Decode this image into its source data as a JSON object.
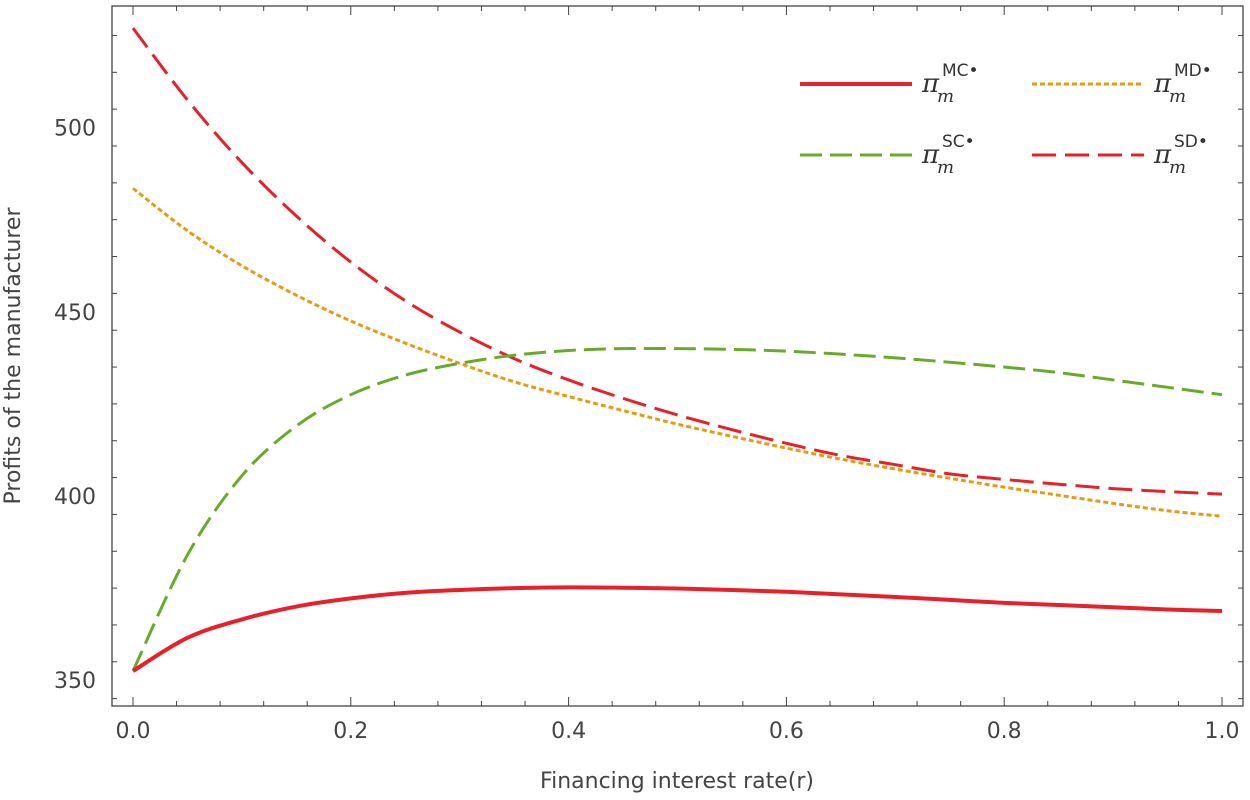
{
  "chart_data": {
    "type": "line",
    "xlabel": "Financing interest rate(r)",
    "ylabel": "Profits of the manufacturer",
    "xlim": [
      0,
      1
    ],
    "ylim": [
      343,
      533
    ],
    "x_ticks": [
      "0.0",
      "0.2",
      "0.4",
      "0.6",
      "0.8",
      "1.0"
    ],
    "y_ticks": [
      "350",
      "400",
      "450",
      "500"
    ],
    "x_tick_values": [
      0,
      0.2,
      0.4,
      0.6,
      0.8,
      1.0
    ],
    "y_tick_values": [
      350,
      400,
      450,
      500
    ],
    "grid": false,
    "legend_position": "top-right",
    "series": [
      {
        "name": "MC",
        "legend": {
          "symbol": "π",
          "sub": "m",
          "sup": "MC•"
        },
        "color": "#e8202a",
        "style": "solid",
        "x": [
          0,
          0.05,
          0.1,
          0.15,
          0.2,
          0.25,
          0.3,
          0.35,
          0.4,
          0.45,
          0.5,
          0.55,
          0.6,
          0.65,
          0.7,
          0.75,
          0.8,
          0.85,
          0.9,
          0.95,
          1.0
        ],
        "y": [
          352.5,
          361.5,
          366.5,
          370.0,
          372.2,
          373.7,
          374.5,
          375.0,
          375.2,
          375.1,
          374.9,
          374.5,
          374.0,
          373.3,
          372.6,
          371.8,
          371.0,
          370.4,
          369.8,
          369.2,
          368.8
        ]
      },
      {
        "name": "MD",
        "legend": {
          "symbol": "π",
          "sub": "m",
          "sup": "MD•"
        },
        "color": "#e99a13",
        "style": "dotted",
        "x": [
          0,
          0.05,
          0.1,
          0.15,
          0.2,
          0.25,
          0.3,
          0.35,
          0.4,
          0.45,
          0.5,
          0.55,
          0.6,
          0.65,
          0.7,
          0.75,
          0.8,
          0.85,
          0.9,
          0.95,
          1.0
        ],
        "y": [
          483.5,
          472.0,
          462.5,
          454.5,
          447.5,
          441.5,
          436.0,
          431.0,
          427.0,
          423.2,
          419.5,
          416.2,
          413.0,
          410.0,
          407.3,
          404.8,
          402.4,
          400.2,
          398.0,
          396.0,
          394.5
        ]
      },
      {
        "name": "SC",
        "legend": {
          "symbol": "π",
          "sub": "m",
          "sup": "SC•"
        },
        "color": "#6aaa2a",
        "style": "dashed",
        "x": [
          0,
          0.05,
          0.1,
          0.15,
          0.2,
          0.25,
          0.3,
          0.35,
          0.4,
          0.45,
          0.5,
          0.55,
          0.6,
          0.65,
          0.7,
          0.75,
          0.8,
          0.85,
          0.9,
          0.95,
          1.0
        ],
        "y": [
          352.5,
          384.0,
          405.5,
          419.0,
          427.5,
          432.8,
          436.0,
          438.2,
          439.5,
          440.0,
          440.0,
          439.8,
          439.3,
          438.5,
          437.5,
          436.3,
          435.0,
          433.5,
          431.5,
          429.5,
          427.5
        ]
      },
      {
        "name": "SD",
        "legend": {
          "symbol": "π",
          "sub": "m",
          "sup": "SD•"
        },
        "color": "#e8202a",
        "style": "longdash",
        "x": [
          0,
          0.05,
          0.1,
          0.15,
          0.2,
          0.25,
          0.3,
          0.35,
          0.4,
          0.45,
          0.5,
          0.55,
          0.6,
          0.65,
          0.7,
          0.75,
          0.8,
          0.85,
          0.9,
          0.95,
          1.0
        ],
        "y": [
          527.0,
          507.5,
          490.5,
          476.0,
          463.5,
          453.0,
          444.5,
          437.3,
          431.5,
          426.5,
          422.0,
          418.0,
          414.3,
          411.0,
          408.5,
          406.0,
          404.5,
          403.2,
          402.0,
          401.2,
          400.5
        ]
      }
    ]
  }
}
